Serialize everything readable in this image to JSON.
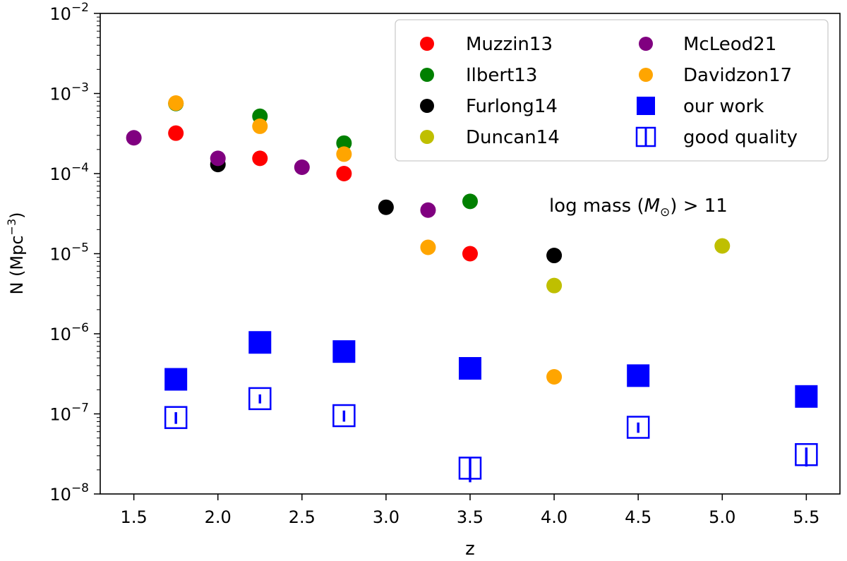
{
  "chart_data": {
    "type": "scatter",
    "xlabel": "z",
    "ylabel": "N (Mpc⁻³)",
    "ylabel_base": "N (Mpc",
    "ylabel_exp": "−3",
    "ylabel_close": ")",
    "yscale": "log",
    "xlim": [
      1.3,
      5.7
    ],
    "ylim": [
      1e-08,
      0.01
    ],
    "xticks": [
      1.5,
      2.0,
      2.5,
      3.0,
      3.5,
      4.0,
      4.5,
      5.0,
      5.5
    ],
    "xtick_labels": [
      "1.5",
      "2.0",
      "2.5",
      "3.0",
      "3.5",
      "4.0",
      "4.5",
      "5.0",
      "5.5"
    ],
    "yticks": [
      -8,
      -7,
      -6,
      -5,
      -4,
      -3,
      -2
    ],
    "ytick_base": "10",
    "ytick_exps": [
      "−8",
      "−7",
      "−6",
      "−5",
      "−4",
      "−3",
      "−2"
    ],
    "annotation": {
      "text_prefix": "log mass (",
      "text_symbol": "M",
      "text_subscript": "⊙",
      "text_suffix": ") > 11",
      "x": 3.97,
      "y": 4e-05
    },
    "legend_position": "top-right",
    "series": [
      {
        "name": "Muzzin13",
        "color": "#ff0000",
        "marker": "circle",
        "x": [
          1.75,
          2.25,
          2.75,
          3.5
        ],
        "y": [
          0.00032,
          0.000155,
          0.0001,
          1e-05
        ]
      },
      {
        "name": "Ilbert13",
        "color": "#008000",
        "marker": "circle",
        "x": [
          1.75,
          2.25,
          2.75,
          3.5
        ],
        "y": [
          0.00075,
          0.00052,
          0.00024,
          4.5e-05
        ]
      },
      {
        "name": "Furlong14",
        "color": "#000000",
        "marker": "circle",
        "x": [
          2.0,
          3.0,
          4.0
        ],
        "y": [
          0.00013,
          3.8e-05,
          9.5e-06
        ]
      },
      {
        "name": "Duncan14",
        "color": "#bfbf00",
        "marker": "circle",
        "x": [
          4.0,
          5.0
        ],
        "y": [
          4e-06,
          1.25e-05
        ]
      },
      {
        "name": "McLeod21",
        "color": "#800080",
        "marker": "circle",
        "x": [
          1.5,
          2.0,
          2.5,
          3.25
        ],
        "y": [
          0.00028,
          0.000155,
          0.00012,
          3.5e-05
        ]
      },
      {
        "name": "Davidzon17",
        "color": "#ffa500",
        "marker": "circle",
        "x": [
          1.75,
          2.25,
          2.75,
          3.25,
          4.0
        ],
        "y": [
          0.00076,
          0.00039,
          0.000175,
          1.2e-05,
          2.9e-07
        ]
      },
      {
        "name": "our work",
        "color": "#0000ff",
        "marker": "square",
        "x": [
          1.75,
          2.25,
          2.75,
          3.5,
          4.5,
          5.5
        ],
        "y": [
          2.7e-07,
          7.8e-07,
          6e-07,
          3.7e-07,
          3e-07,
          1.65e-07
        ]
      },
      {
        "name": "good quality",
        "color": "#0000ff",
        "marker": "square-open",
        "x": [
          1.75,
          2.25,
          2.75,
          3.5,
          4.5,
          5.5
        ],
        "y": [
          9e-08,
          1.55e-07,
          9.5e-08,
          2.1e-08,
          6.8e-08,
          3.1e-08
        ],
        "yerr_low": [
          7.5e-08,
          1.35e-07,
          8e-08,
          1.4e-08,
          5.8e-08,
          2.2e-08
        ],
        "yerr_high": [
          1.05e-07,
          1.75e-07,
          1.1e-07,
          2.8e-08,
          7.8e-08,
          3.8e-08
        ]
      }
    ]
  }
}
